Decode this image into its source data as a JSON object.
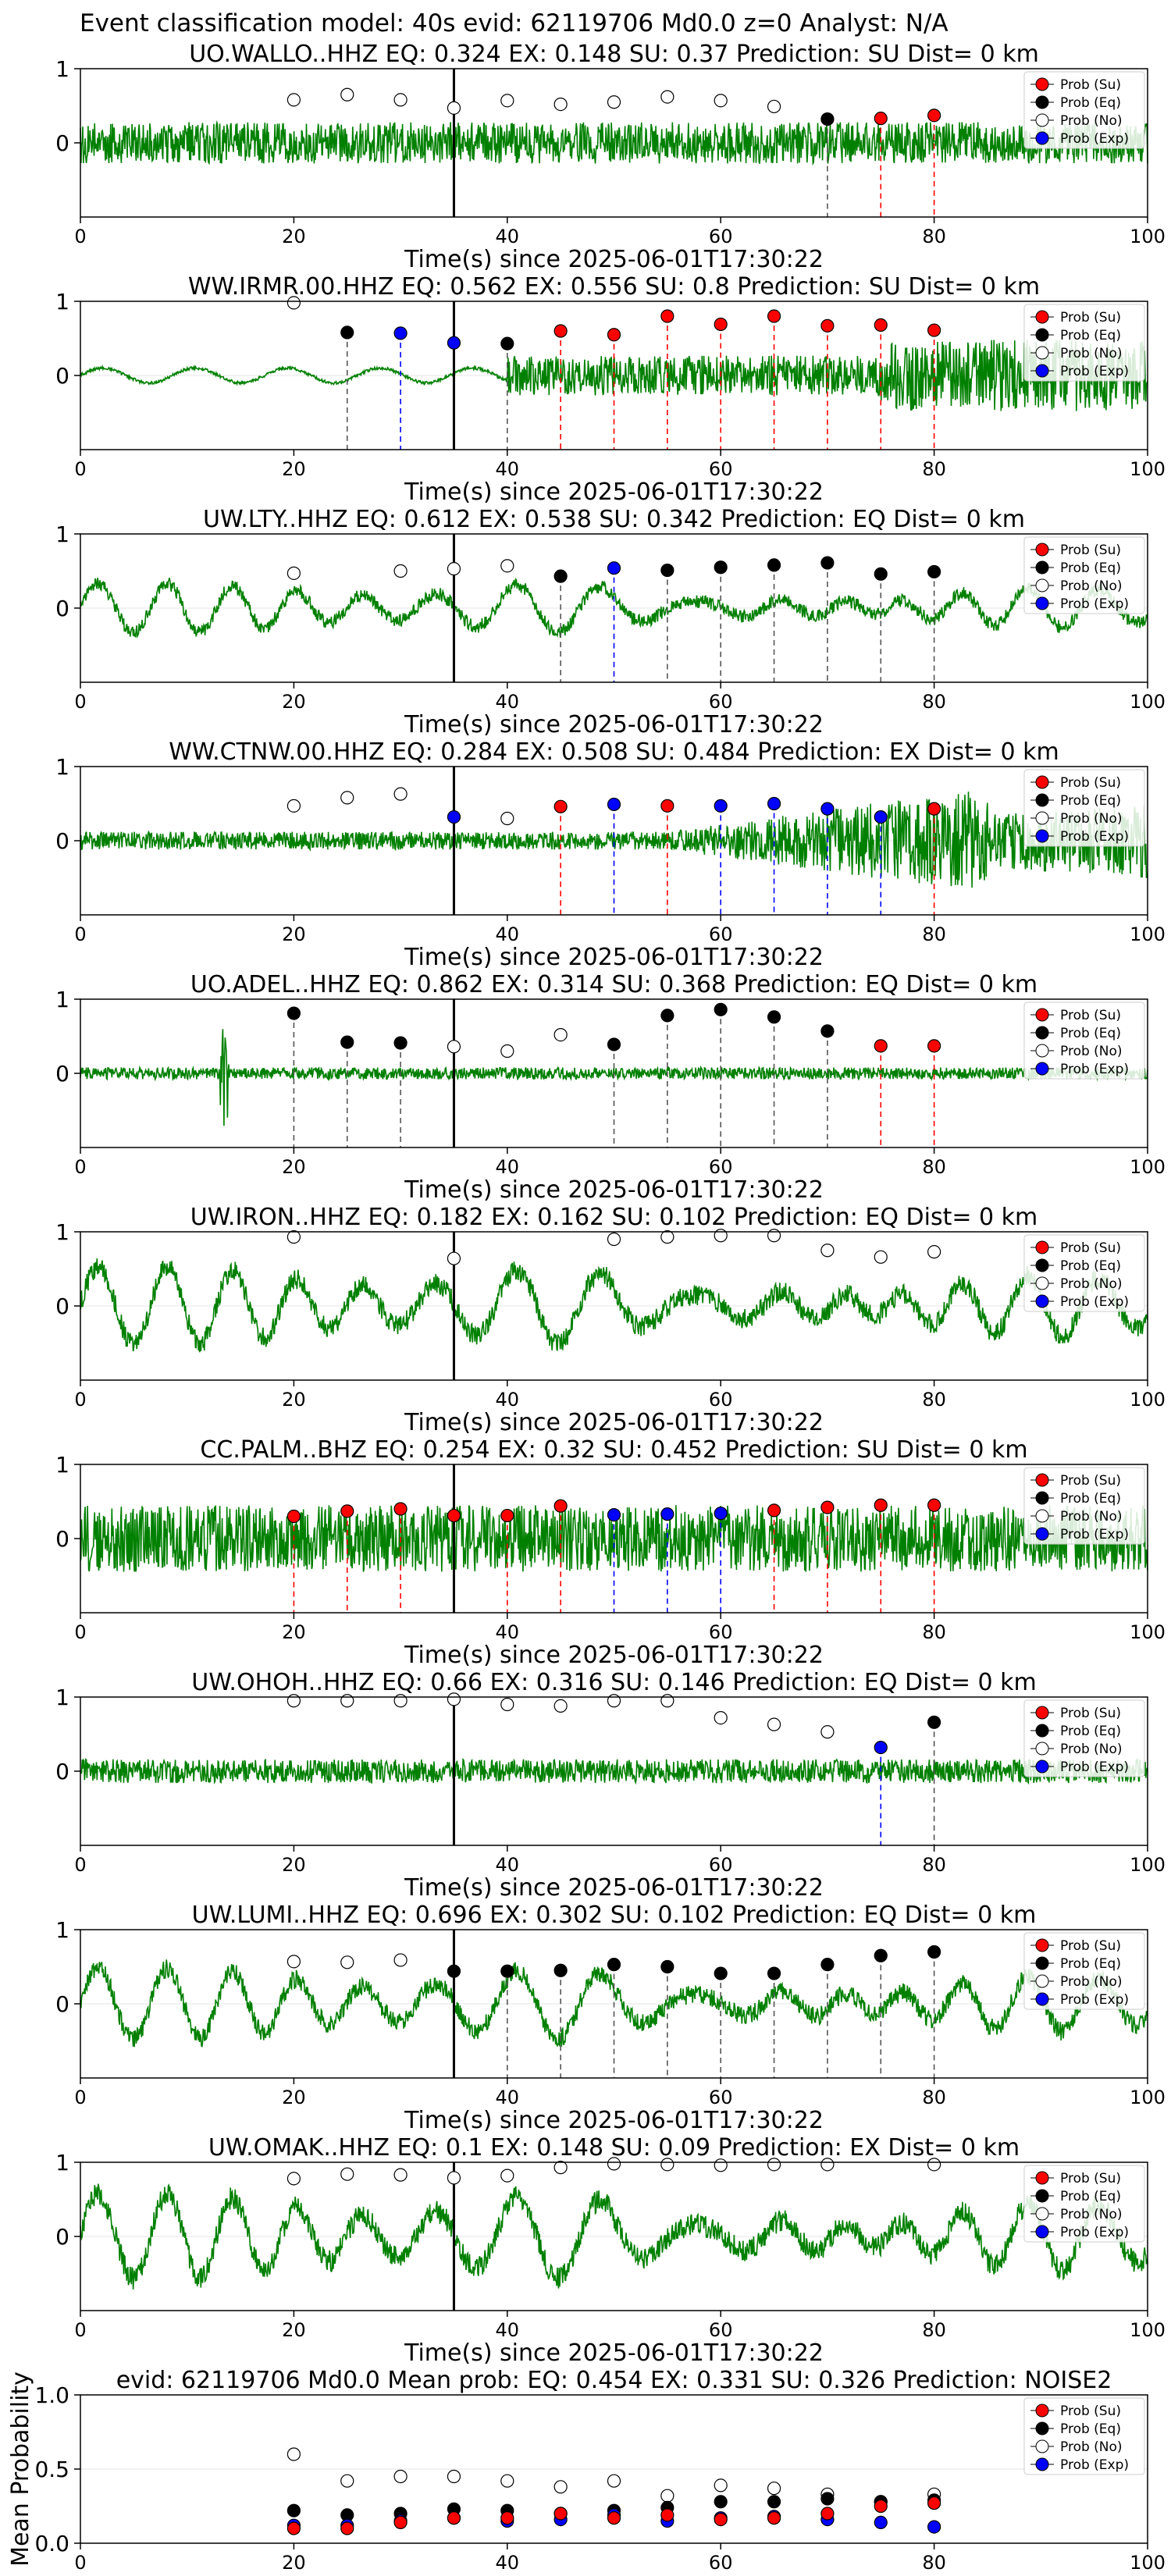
{
  "figure_title": "Event classification model: 40s evid: 62119706 Md0.0 z=0 Analyst: N/A",
  "legend_labels": [
    "Prob (Su)",
    "Prob (Eq)",
    "Prob (No)",
    "Prob (Exp)"
  ],
  "colors": {
    "waveform": "#008000",
    "su": "#ff0000",
    "eq": "#000000",
    "no": "#ffffff",
    "exp": "#0000ff",
    "arrival": "#000000"
  },
  "chart_data": [
    {
      "type": "line",
      "title": "UO.WALLO..HHZ   EQ: 0.324  EX: 0.148  SU: 0.37   Prediction: SU    Dist= 0 km",
      "xlabel": "Time(s) since 2025-06-01T17:30:22",
      "xlim": [
        0,
        100
      ],
      "ylim": [
        -1,
        1
      ],
      "xticks": [
        0,
        20,
        40,
        60,
        80,
        100
      ],
      "yticks": [
        0,
        1
      ],
      "arrival_time": 35,
      "waveform_seed": 11,
      "waveform_style": "noise",
      "waveform_amp": 0.28,
      "points": [
        {
          "x": 20,
          "y": 0.58,
          "class": "no"
        },
        {
          "x": 25,
          "y": 0.65,
          "class": "no"
        },
        {
          "x": 30,
          "y": 0.58,
          "class": "no"
        },
        {
          "x": 35,
          "y": 0.47,
          "class": "no"
        },
        {
          "x": 40,
          "y": 0.57,
          "class": "no"
        },
        {
          "x": 45,
          "y": 0.52,
          "class": "no"
        },
        {
          "x": 50,
          "y": 0.55,
          "class": "no"
        },
        {
          "x": 55,
          "y": 0.62,
          "class": "no"
        },
        {
          "x": 60,
          "y": 0.57,
          "class": "no"
        },
        {
          "x": 65,
          "y": 0.49,
          "class": "no"
        },
        {
          "x": 70,
          "y": 0.32,
          "class": "eq"
        },
        {
          "x": 75,
          "y": 0.33,
          "class": "su"
        },
        {
          "x": 80,
          "y": 0.37,
          "class": "su"
        }
      ]
    },
    {
      "type": "line",
      "title": "WW.IRMR.00.HHZ   EQ: 0.562  EX: 0.556  SU: 0.8   Prediction: SU    Dist= 0 km",
      "xlabel": "Time(s) since 2025-06-01T17:30:22",
      "xlim": [
        0,
        100
      ],
      "ylim": [
        -1,
        1
      ],
      "xticks": [
        0,
        20,
        40,
        60,
        80,
        100
      ],
      "yticks": [
        0,
        1
      ],
      "arrival_time": 35,
      "waveform_seed": 23,
      "waveform_style": "smooth_then_noise",
      "waveform_amp": 0.3,
      "points": [
        {
          "x": 20,
          "y": 0.98,
          "class": "no"
        },
        {
          "x": 25,
          "y": 0.58,
          "class": "eq"
        },
        {
          "x": 30,
          "y": 0.57,
          "class": "exp"
        },
        {
          "x": 35,
          "y": 0.44,
          "class": "exp"
        },
        {
          "x": 40,
          "y": 0.43,
          "class": "eq"
        },
        {
          "x": 45,
          "y": 0.6,
          "class": "su"
        },
        {
          "x": 50,
          "y": 0.55,
          "class": "su"
        },
        {
          "x": 55,
          "y": 0.8,
          "class": "su"
        },
        {
          "x": 60,
          "y": 0.69,
          "class": "su"
        },
        {
          "x": 65,
          "y": 0.8,
          "class": "su"
        },
        {
          "x": 70,
          "y": 0.67,
          "class": "su"
        },
        {
          "x": 75,
          "y": 0.68,
          "class": "su"
        },
        {
          "x": 80,
          "y": 0.61,
          "class": "su"
        }
      ]
    },
    {
      "type": "line",
      "title": "UW.LTY..HHZ   EQ: 0.612  EX: 0.538  SU: 0.342   Prediction: EQ    Dist= 0 km",
      "xlabel": "Time(s) since 2025-06-01T17:30:22",
      "xlim": [
        0,
        100
      ],
      "ylim": [
        -1,
        1
      ],
      "xticks": [
        0,
        20,
        40,
        60,
        80,
        100
      ],
      "yticks": [
        0,
        1
      ],
      "arrival_time": 35,
      "waveform_seed": 37,
      "waveform_style": "wavy",
      "waveform_amp": 0.35,
      "points": [
        {
          "x": 20,
          "y": 0.47,
          "class": "no"
        },
        {
          "x": 30,
          "y": 0.5,
          "class": "no"
        },
        {
          "x": 35,
          "y": 0.53,
          "class": "no"
        },
        {
          "x": 40,
          "y": 0.57,
          "class": "no"
        },
        {
          "x": 45,
          "y": 0.43,
          "class": "eq"
        },
        {
          "x": 50,
          "y": 0.54,
          "class": "exp"
        },
        {
          "x": 55,
          "y": 0.51,
          "class": "eq"
        },
        {
          "x": 60,
          "y": 0.55,
          "class": "eq"
        },
        {
          "x": 65,
          "y": 0.58,
          "class": "eq"
        },
        {
          "x": 70,
          "y": 0.61,
          "class": "eq"
        },
        {
          "x": 75,
          "y": 0.46,
          "class": "eq"
        },
        {
          "x": 80,
          "y": 0.49,
          "class": "eq"
        }
      ]
    },
    {
      "type": "line",
      "title": "WW.CTNW.00.HHZ   EQ: 0.284  EX: 0.508  SU: 0.484   Prediction: EX    Dist= 0 km",
      "xlabel": "Time(s) since 2025-06-01T17:30:22",
      "xlim": [
        0,
        100
      ],
      "ylim": [
        -1,
        1
      ],
      "xticks": [
        0,
        20,
        40,
        60,
        80,
        100
      ],
      "yticks": [
        0,
        1
      ],
      "arrival_time": 35,
      "waveform_seed": 41,
      "waveform_style": "growing",
      "waveform_amp": 0.12,
      "points": [
        {
          "x": 20,
          "y": 0.47,
          "class": "no"
        },
        {
          "x": 25,
          "y": 0.58,
          "class": "no"
        },
        {
          "x": 30,
          "y": 0.63,
          "class": "no"
        },
        {
          "x": 35,
          "y": 0.32,
          "class": "exp"
        },
        {
          "x": 40,
          "y": 0.3,
          "class": "no"
        },
        {
          "x": 45,
          "y": 0.46,
          "class": "su"
        },
        {
          "x": 50,
          "y": 0.49,
          "class": "exp"
        },
        {
          "x": 55,
          "y": 0.47,
          "class": "su"
        },
        {
          "x": 60,
          "y": 0.47,
          "class": "exp"
        },
        {
          "x": 65,
          "y": 0.5,
          "class": "exp"
        },
        {
          "x": 70,
          "y": 0.43,
          "class": "exp"
        },
        {
          "x": 75,
          "y": 0.32,
          "class": "exp"
        },
        {
          "x": 80,
          "y": 0.43,
          "class": "su"
        }
      ]
    },
    {
      "type": "line",
      "title": "UO.ADEL..HHZ   EQ: 0.862  EX: 0.314  SU: 0.368   Prediction: EQ    Dist= 0 km",
      "xlabel": "Time(s) since 2025-06-01T17:30:22",
      "xlim": [
        0,
        100
      ],
      "ylim": [
        -1,
        1
      ],
      "xticks": [
        0,
        20,
        40,
        60,
        80,
        100
      ],
      "yticks": [
        0,
        1
      ],
      "arrival_time": 35,
      "waveform_seed": 53,
      "waveform_style": "quiet_spike",
      "waveform_amp": 0.08,
      "points": [
        {
          "x": 20,
          "y": 0.81,
          "class": "eq"
        },
        {
          "x": 25,
          "y": 0.42,
          "class": "eq"
        },
        {
          "x": 30,
          "y": 0.41,
          "class": "eq"
        },
        {
          "x": 35,
          "y": 0.36,
          "class": "no"
        },
        {
          "x": 40,
          "y": 0.3,
          "class": "no"
        },
        {
          "x": 45,
          "y": 0.52,
          "class": "no"
        },
        {
          "x": 50,
          "y": 0.39,
          "class": "eq"
        },
        {
          "x": 55,
          "y": 0.78,
          "class": "eq"
        },
        {
          "x": 60,
          "y": 0.86,
          "class": "eq"
        },
        {
          "x": 65,
          "y": 0.76,
          "class": "eq"
        },
        {
          "x": 70,
          "y": 0.57,
          "class": "eq"
        },
        {
          "x": 75,
          "y": 0.37,
          "class": "su"
        },
        {
          "x": 80,
          "y": 0.37,
          "class": "su"
        }
      ]
    },
    {
      "type": "line",
      "title": "UW.IRON..HHZ   EQ: 0.182  EX: 0.162  SU: 0.102   Prediction: EQ    Dist= 0 km",
      "xlabel": "Time(s) since 2025-06-01T17:30:22",
      "xlim": [
        0,
        100
      ],
      "ylim": [
        -1,
        1
      ],
      "xticks": [
        0,
        20,
        40,
        60,
        80,
        100
      ],
      "yticks": [
        0,
        1
      ],
      "arrival_time": 35,
      "waveform_seed": 67,
      "waveform_style": "wavy",
      "waveform_amp": 0.55,
      "points": [
        {
          "x": 20,
          "y": 0.93,
          "class": "no"
        },
        {
          "x": 35,
          "y": 0.64,
          "class": "no"
        },
        {
          "x": 50,
          "y": 0.9,
          "class": "no"
        },
        {
          "x": 55,
          "y": 0.93,
          "class": "no"
        },
        {
          "x": 60,
          "y": 0.95,
          "class": "no"
        },
        {
          "x": 65,
          "y": 0.95,
          "class": "no"
        },
        {
          "x": 70,
          "y": 0.75,
          "class": "no"
        },
        {
          "x": 75,
          "y": 0.66,
          "class": "no"
        },
        {
          "x": 80,
          "y": 0.73,
          "class": "no"
        }
      ]
    },
    {
      "type": "line",
      "title": "CC.PALM..BHZ   EQ: 0.254  EX: 0.32  SU: 0.452   Prediction: SU    Dist= 0 km",
      "xlabel": "Time(s) since 2025-06-01T17:30:22",
      "xlim": [
        0,
        100
      ],
      "ylim": [
        -1,
        1
      ],
      "xticks": [
        0,
        20,
        40,
        60,
        80,
        100
      ],
      "yticks": [
        0,
        1
      ],
      "arrival_time": 35,
      "waveform_seed": 79,
      "waveform_style": "noise",
      "waveform_amp": 0.45,
      "points": [
        {
          "x": 20,
          "y": 0.3,
          "class": "su"
        },
        {
          "x": 25,
          "y": 0.37,
          "class": "su"
        },
        {
          "x": 30,
          "y": 0.4,
          "class": "su"
        },
        {
          "x": 35,
          "y": 0.31,
          "class": "su"
        },
        {
          "x": 40,
          "y": 0.31,
          "class": "su"
        },
        {
          "x": 45,
          "y": 0.44,
          "class": "su"
        },
        {
          "x": 50,
          "y": 0.32,
          "class": "exp"
        },
        {
          "x": 55,
          "y": 0.33,
          "class": "exp"
        },
        {
          "x": 60,
          "y": 0.34,
          "class": "exp"
        },
        {
          "x": 65,
          "y": 0.38,
          "class": "su"
        },
        {
          "x": 70,
          "y": 0.42,
          "class": "su"
        },
        {
          "x": 75,
          "y": 0.45,
          "class": "su"
        },
        {
          "x": 80,
          "y": 0.45,
          "class": "su"
        }
      ]
    },
    {
      "type": "line",
      "title": "UW.OHOH..HHZ   EQ: 0.66  EX: 0.316  SU: 0.146   Prediction: EQ    Dist= 0 km",
      "xlabel": "Time(s) since 2025-06-01T17:30:22",
      "xlim": [
        0,
        100
      ],
      "ylim": [
        -1,
        1
      ],
      "xticks": [
        0,
        20,
        40,
        60,
        80,
        100
      ],
      "yticks": [
        0,
        1
      ],
      "arrival_time": 35,
      "waveform_seed": 83,
      "waveform_style": "noise",
      "waveform_amp": 0.16,
      "points": [
        {
          "x": 20,
          "y": 0.95,
          "class": "no"
        },
        {
          "x": 25,
          "y": 0.95,
          "class": "no"
        },
        {
          "x": 30,
          "y": 0.95,
          "class": "no"
        },
        {
          "x": 35,
          "y": 0.97,
          "class": "no"
        },
        {
          "x": 40,
          "y": 0.9,
          "class": "no"
        },
        {
          "x": 45,
          "y": 0.88,
          "class": "no"
        },
        {
          "x": 50,
          "y": 0.95,
          "class": "no"
        },
        {
          "x": 55,
          "y": 0.95,
          "class": "no"
        },
        {
          "x": 60,
          "y": 0.72,
          "class": "no"
        },
        {
          "x": 65,
          "y": 0.63,
          "class": "no"
        },
        {
          "x": 70,
          "y": 0.53,
          "class": "no"
        },
        {
          "x": 75,
          "y": 0.32,
          "class": "exp"
        },
        {
          "x": 80,
          "y": 0.66,
          "class": "eq"
        }
      ]
    },
    {
      "type": "line",
      "title": "UW.LUMI..HHZ   EQ: 0.696  EX: 0.302  SU: 0.102   Prediction: EQ    Dist= 0 km",
      "xlabel": "Time(s) since 2025-06-01T17:30:22",
      "xlim": [
        0,
        100
      ],
      "ylim": [
        -1,
        1
      ],
      "xticks": [
        0,
        20,
        40,
        60,
        80,
        100
      ],
      "yticks": [
        0,
        1
      ],
      "arrival_time": 35,
      "waveform_seed": 97,
      "waveform_style": "wavy",
      "waveform_amp": 0.5,
      "points": [
        {
          "x": 20,
          "y": 0.57,
          "class": "no"
        },
        {
          "x": 25,
          "y": 0.56,
          "class": "no"
        },
        {
          "x": 30,
          "y": 0.59,
          "class": "no"
        },
        {
          "x": 35,
          "y": 0.44,
          "class": "eq"
        },
        {
          "x": 40,
          "y": 0.44,
          "class": "eq"
        },
        {
          "x": 45,
          "y": 0.45,
          "class": "eq"
        },
        {
          "x": 50,
          "y": 0.53,
          "class": "eq"
        },
        {
          "x": 55,
          "y": 0.5,
          "class": "eq"
        },
        {
          "x": 60,
          "y": 0.41,
          "class": "eq"
        },
        {
          "x": 65,
          "y": 0.41,
          "class": "eq"
        },
        {
          "x": 70,
          "y": 0.53,
          "class": "eq"
        },
        {
          "x": 75,
          "y": 0.65,
          "class": "eq"
        },
        {
          "x": 80,
          "y": 0.7,
          "class": "eq"
        }
      ]
    },
    {
      "type": "line",
      "title": "UW.OMAK..HHZ   EQ: 0.1  EX: 0.148  SU: 0.09   Prediction: EX    Dist= 0 km",
      "xlabel": "Time(s) since 2025-06-01T17:30:22",
      "xlim": [
        0,
        100
      ],
      "ylim": [
        -1,
        1
      ],
      "xticks": [
        0,
        20,
        40,
        60,
        80,
        100
      ],
      "yticks": [
        0,
        1
      ],
      "arrival_time": 35,
      "waveform_seed": 101,
      "waveform_style": "wavy",
      "waveform_amp": 0.6,
      "points": [
        {
          "x": 20,
          "y": 0.78,
          "class": "no"
        },
        {
          "x": 25,
          "y": 0.84,
          "class": "no"
        },
        {
          "x": 30,
          "y": 0.83,
          "class": "no"
        },
        {
          "x": 35,
          "y": 0.79,
          "class": "no"
        },
        {
          "x": 40,
          "y": 0.82,
          "class": "no"
        },
        {
          "x": 45,
          "y": 0.93,
          "class": "no"
        },
        {
          "x": 50,
          "y": 0.98,
          "class": "no"
        },
        {
          "x": 55,
          "y": 0.97,
          "class": "no"
        },
        {
          "x": 60,
          "y": 0.96,
          "class": "no"
        },
        {
          "x": 65,
          "y": 0.97,
          "class": "no"
        },
        {
          "x": 70,
          "y": 0.97,
          "class": "no"
        },
        {
          "x": 80,
          "y": 0.97,
          "class": "no"
        }
      ]
    },
    {
      "type": "scatter",
      "title": "evid: 62119706  Md0.0   Mean prob:   EQ: 0.454  EX: 0.331  SU: 0.326   Prediction: NOISE2",
      "xlabel": "",
      "ylabel": "Mean Probability",
      "xlim": [
        0,
        100
      ],
      "ylim": [
        0,
        1
      ],
      "xticks": [
        0,
        20,
        40,
        60,
        80,
        100
      ],
      "yticks": [
        0.0,
        0.5,
        1.0
      ],
      "ytick_labels": [
        "0.0",
        "0.5",
        "1.0"
      ],
      "series": [
        {
          "name": "Prob (No)",
          "class": "no",
          "x": [
            20,
            25,
            30,
            35,
            40,
            45,
            50,
            55,
            60,
            65,
            70,
            75,
            80
          ],
          "y": [
            0.6,
            0.42,
            0.45,
            0.45,
            0.42,
            0.38,
            0.42,
            0.32,
            0.39,
            0.37,
            0.33,
            0.28,
            0.33
          ]
        },
        {
          "name": "Prob (Eq)",
          "class": "eq",
          "x": [
            20,
            25,
            30,
            35,
            40,
            45,
            50,
            55,
            60,
            65,
            70,
            75,
            80
          ],
          "y": [
            0.22,
            0.19,
            0.2,
            0.23,
            0.22,
            0.2,
            0.22,
            0.24,
            0.28,
            0.28,
            0.3,
            0.28,
            0.29
          ]
        },
        {
          "name": "Prob (Exp)",
          "class": "exp",
          "x": [
            20,
            25,
            30,
            35,
            40,
            45,
            50,
            55,
            60,
            65,
            70,
            75,
            80
          ],
          "y": [
            0.12,
            0.12,
            0.15,
            0.17,
            0.15,
            0.16,
            0.19,
            0.15,
            0.17,
            0.18,
            0.16,
            0.14,
            0.11
          ]
        },
        {
          "name": "Prob (Su)",
          "class": "su",
          "x": [
            20,
            25,
            30,
            35,
            40,
            45,
            50,
            55,
            60,
            65,
            70,
            75,
            80
          ],
          "y": [
            0.1,
            0.1,
            0.14,
            0.17,
            0.17,
            0.2,
            0.17,
            0.19,
            0.16,
            0.17,
            0.2,
            0.25,
            0.27
          ]
        }
      ]
    }
  ]
}
